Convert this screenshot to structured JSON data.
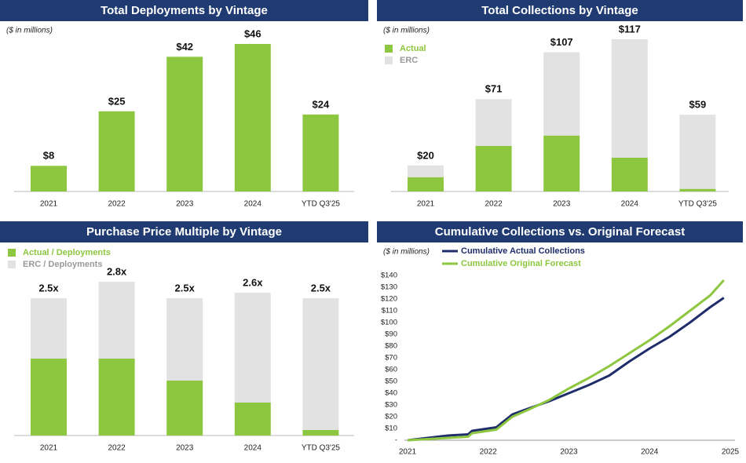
{
  "chart_data": [
    {
      "type": "bar",
      "title": "Total Deployments by Vintage",
      "subtitle": "($ in millions)",
      "categories": [
        "2021",
        "2022",
        "2023",
        "2024",
        "YTD Q3'25"
      ],
      "values": [
        8,
        25,
        42,
        46,
        24
      ],
      "value_labels": [
        "$8",
        "$25",
        "$42",
        "$46",
        "$24"
      ],
      "color": "#8dc63f"
    },
    {
      "type": "stacked_bar",
      "title": "Total Collections by Vintage",
      "subtitle": "($ in millions)",
      "categories": [
        "2021",
        "2022",
        "2023",
        "2024",
        "YTD Q3'25"
      ],
      "series": [
        {
          "name": "Actual",
          "color": "#8dc63f",
          "values": [
            11,
            35,
            43,
            26,
            2
          ]
        },
        {
          "name": "ERC",
          "color": "#e2e2e2",
          "values": [
            9,
            36,
            64,
            91,
            57
          ]
        }
      ],
      "totals": [
        20,
        71,
        107,
        117,
        59
      ],
      "total_labels": [
        "$20",
        "$71",
        "$107",
        "$117",
        "$59"
      ]
    },
    {
      "type": "stacked_bar",
      "title": "Purchase Price Multiple by Vintage",
      "categories": [
        "2021",
        "2022",
        "2023",
        "2024",
        "YTD Q3'25"
      ],
      "series": [
        {
          "name": "Actual / Deployments",
          "color": "#8dc63f",
          "values": [
            1.4,
            1.4,
            1.0,
            0.6,
            0.1
          ]
        },
        {
          "name": "ERC / Deployments",
          "color": "#e2e2e2",
          "values": [
            1.1,
            1.4,
            1.5,
            2.0,
            2.4
          ]
        }
      ],
      "totals": [
        2.5,
        2.8,
        2.5,
        2.6,
        2.5
      ],
      "total_labels": [
        "2.5x",
        "2.8x",
        "2.5x",
        "2.6x",
        "2.5x"
      ]
    },
    {
      "type": "line",
      "title": "Cumulative Collections vs. Original Forecast",
      "subtitle": "($ in millions)",
      "x": [
        2021,
        2021.25,
        2021.5,
        2021.75,
        2021.8,
        2022.1,
        2022.3,
        2022.5,
        2022.75,
        2023,
        2023.25,
        2023.5,
        2023.75,
        2024,
        2024.25,
        2024.5,
        2024.75,
        2024.92
      ],
      "series": [
        {
          "name": "Cumulative Actual Collections",
          "color": "#1f2d6b",
          "values": [
            0,
            2,
            4,
            5,
            8,
            11,
            22,
            27,
            33,
            40,
            47,
            55,
            67,
            78,
            88,
            100,
            113,
            121
          ]
        },
        {
          "name": "Cumulative Original Forecast",
          "color": "#8dc63f",
          "values": [
            0,
            1,
            2,
            3,
            6,
            9,
            20,
            26,
            34,
            44,
            53,
            63,
            74,
            85,
            97,
            110,
            123,
            136
          ]
        }
      ],
      "xlim": [
        2021,
        2025
      ],
      "xticks": [
        2021,
        2022,
        2023,
        2024,
        2025
      ],
      "ylim": [
        0,
        140
      ],
      "yticks": [
        {
          "value": 0,
          "label": "-"
        },
        {
          "value": 10,
          "label": "$10"
        },
        {
          "value": 20,
          "label": "$20"
        },
        {
          "value": 30,
          "label": "$30"
        },
        {
          "value": 40,
          "label": "$40"
        },
        {
          "value": 50,
          "label": "$50"
        },
        {
          "value": 60,
          "label": "$60"
        },
        {
          "value": 70,
          "label": "$70"
        },
        {
          "value": 80,
          "label": "$80"
        },
        {
          "value": 90,
          "label": "$90"
        },
        {
          "value": 100,
          "label": "$100"
        },
        {
          "value": 110,
          "label": "$110"
        },
        {
          "value": 120,
          "label": "$120"
        },
        {
          "value": 130,
          "label": "$130"
        },
        {
          "value": 140,
          "label": "$140"
        }
      ]
    }
  ]
}
